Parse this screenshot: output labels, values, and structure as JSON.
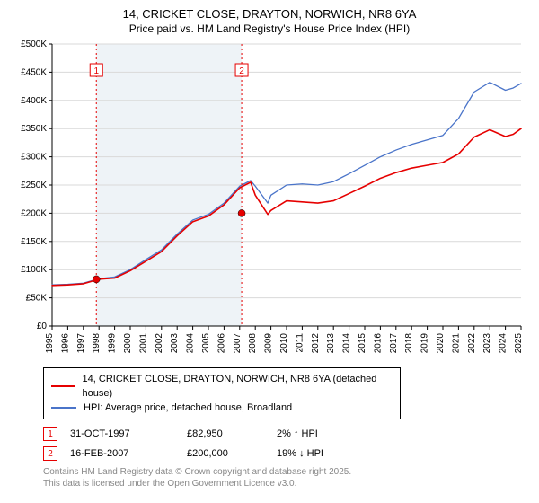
{
  "title_line1": "14, CRICKET CLOSE, DRAYTON, NORWICH, NR8 6YA",
  "title_line2": "Price paid vs. HM Land Registry's House Price Index (HPI)",
  "chart": {
    "type": "line",
    "background_color": "#ffffff",
    "shaded_region_color": "#eef3f7",
    "grid_color": "#d9d9d9",
    "axis_color": "#000000",
    "sale_marker_fill": "#e60000",
    "sale_marker_border": "#000000",
    "sale_vline_color": "#e60000",
    "sale_vline_dash": "2,3",
    "sale_label_border": "#e60000",
    "sale_label_text_color": "#e60000",
    "sale_label_bg": "#ffffff",
    "tick_font_size": 10,
    "xlim": [
      1995,
      2025
    ],
    "ylim": [
      0,
      500000
    ],
    "ytick_step": 50000,
    "ytick_prefix": "£",
    "ytick_suffix": "K",
    "xtick_step": 1,
    "series": [
      {
        "name": "property",
        "label": "14, CRICKET CLOSE, DRAYTON, NORWICH, NR8 6YA (detached house)",
        "color": "#e60000",
        "width": 1.6,
        "years": [
          1995,
          1996,
          1997,
          1998,
          1999,
          2000,
          2001,
          2002,
          2003,
          2004,
          2005,
          2006,
          2007,
          2007.7,
          2008,
          2008.8,
          2009,
          2010,
          2011,
          2012,
          2013,
          2014,
          2015,
          2016,
          2017,
          2018,
          2019,
          2020,
          2021,
          2022,
          2023,
          2024,
          2024.5,
          2025
        ],
        "values": [
          72000,
          73000,
          75000,
          83000,
          85000,
          98000,
          115000,
          132000,
          160000,
          185000,
          195000,
          215000,
          245000,
          255000,
          232000,
          198000,
          205000,
          222000,
          220000,
          218000,
          222000,
          235000,
          248000,
          262000,
          272000,
          280000,
          285000,
          290000,
          305000,
          335000,
          348000,
          336000,
          340000,
          350000
        ]
      },
      {
        "name": "hpi",
        "label": "HPI: Average price, detached house, Broadland",
        "color": "#4a74c9",
        "width": 1.3,
        "years": [
          1995,
          1996,
          1997,
          1998,
          1999,
          2000,
          2001,
          2002,
          2003,
          2004,
          2005,
          2006,
          2007,
          2007.7,
          2008,
          2008.8,
          2009,
          2010,
          2011,
          2012,
          2013,
          2014,
          2015,
          2016,
          2017,
          2018,
          2019,
          2020,
          2021,
          2022,
          2023,
          2024,
          2024.5,
          2025
        ],
        "values": [
          73000,
          74000,
          76000,
          84000,
          87000,
          100000,
          118000,
          135000,
          163000,
          188000,
          198000,
          218000,
          248000,
          258000,
          248000,
          218000,
          232000,
          250000,
          252000,
          250000,
          256000,
          270000,
          285000,
          300000,
          312000,
          322000,
          330000,
          338000,
          368000,
          415000,
          432000,
          418000,
          422000,
          430000
        ]
      }
    ],
    "sales": [
      {
        "n": "1",
        "year": 1997.83,
        "value": 82950
      },
      {
        "n": "2",
        "year": 2007.13,
        "value": 200000
      }
    ]
  },
  "legend": {
    "rows": [
      {
        "color": "#e60000",
        "label": "14, CRICKET CLOSE, DRAYTON, NORWICH, NR8 6YA (detached house)"
      },
      {
        "color": "#4a74c9",
        "label": "HPI: Average price, detached house, Broadland"
      }
    ]
  },
  "sales_table": {
    "rows": [
      {
        "n": "1",
        "color": "#e60000",
        "date": "31-OCT-1997",
        "price": "£82,950",
        "diff": "2% ↑ HPI"
      },
      {
        "n": "2",
        "color": "#e60000",
        "date": "16-FEB-2007",
        "price": "£200,000",
        "diff": "19% ↓ HPI"
      }
    ]
  },
  "footer_line1": "Contains HM Land Registry data © Crown copyright and database right 2025.",
  "footer_line2": "This data is licensed under the Open Government Licence v3.0."
}
